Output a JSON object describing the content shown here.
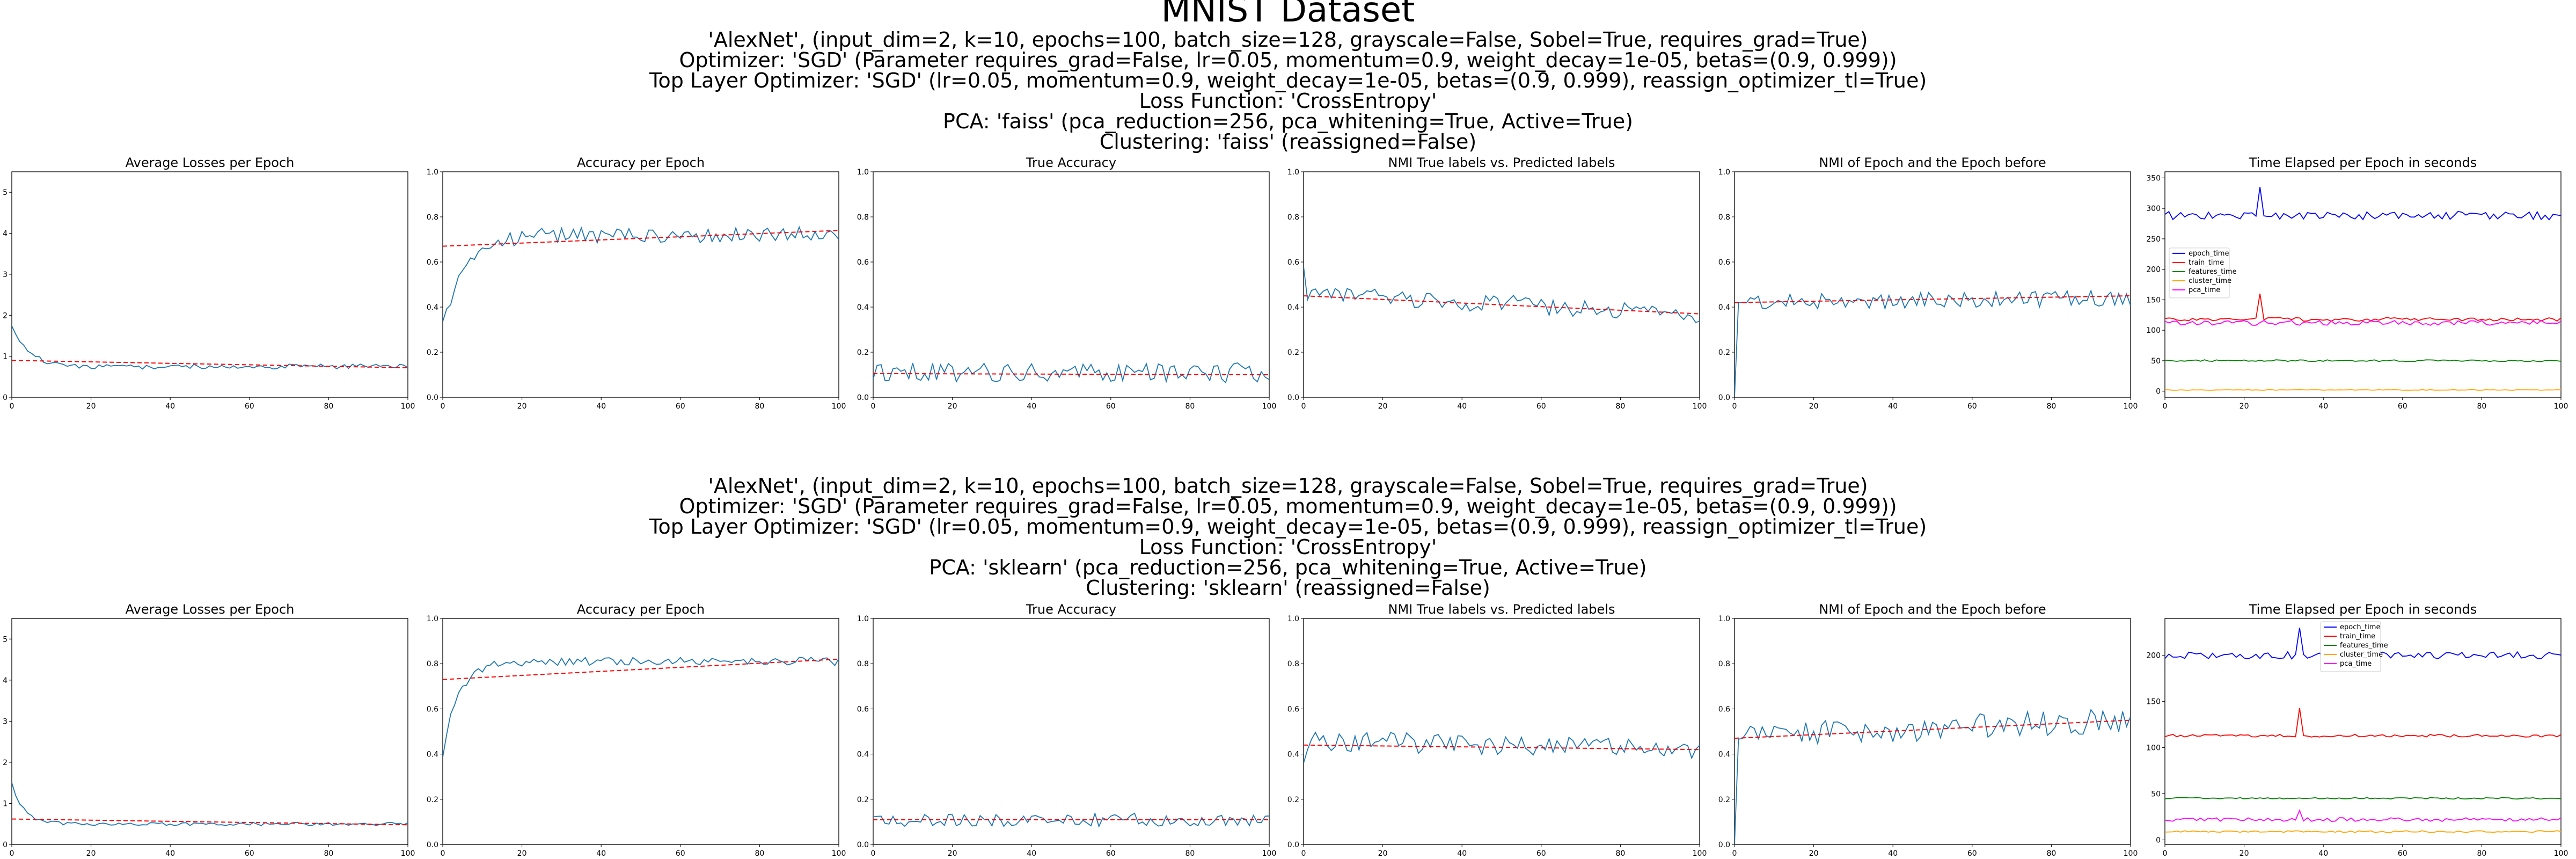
{
  "figure": {
    "title": "MNIST Dataset"
  },
  "colors": {
    "series": "#1f77b4",
    "trend": "#ff0000",
    "epoch_time": "#0000ff",
    "train_time": "#ff0000",
    "features_time": "#008000",
    "cluster_time": "#ffa500",
    "pca_time": "#ff00ff"
  },
  "blocks": [
    {
      "header_lines": [
        "'AlexNet', (input_dim=2, k=10, epochs=100, batch_size=128, grayscale=False, Sobel=True, requires_grad=True)",
        "Optimizer: 'SGD' (Parameter requires_grad=False, lr=0.05, momentum=0.9, weight_decay=1e-05, betas=(0.9, 0.999))",
        "Top Layer Optimizer: 'SGD' (lr=0.05, momentum=0.9, weight_decay=1e-05, betas=(0.9, 0.999), reassign_optimizer_tl=True)",
        "Loss Function: 'CrossEntropy'",
        "PCA: 'faiss' (pca_reduction=256, pca_whitening=True, Active=True)",
        "Clustering: 'faiss' (reassigned=False)"
      ]
    },
    {
      "header_lines": [
        "'AlexNet', (input_dim=2, k=10, epochs=100, batch_size=128, grayscale=False, Sobel=True, requires_grad=True)",
        "Optimizer: 'SGD' (Parameter requires_grad=False, lr=0.05, momentum=0.9, weight_decay=1e-05, betas=(0.9, 0.999))",
        "Top Layer Optimizer: 'SGD' (lr=0.05, momentum=0.9, weight_decay=1e-05, betas=(0.9, 0.999), reassign_optimizer_tl=True)",
        "Loss Function: 'CrossEntropy'",
        "PCA: 'sklearn' (pca_reduction=256, pca_whitening=True, Active=True)",
        "Clustering: 'sklearn' (reassigned=False)"
      ]
    }
  ],
  "chart_data": [
    {
      "type": "line",
      "block": 0,
      "col": 0,
      "title": "Average Losses per Epoch",
      "xlim": [
        0,
        100
      ],
      "ylim": [
        0,
        5.5
      ],
      "xticks": [
        0,
        20,
        40,
        60,
        80,
        100
      ],
      "yticks": [
        0,
        1,
        2,
        3,
        4,
        5
      ],
      "shape": {
        "kind": "decay",
        "start": 1.8,
        "end": 0.75,
        "tau": 4,
        "noise": 0.06
      },
      "trend": [
        0.9,
        0.72
      ]
    },
    {
      "type": "line",
      "block": 0,
      "col": 1,
      "title": "Accuracy per Epoch",
      "xlim": [
        0,
        100
      ],
      "ylim": [
        0,
        1.0
      ],
      "xticks": [
        0,
        20,
        40,
        60,
        80,
        100
      ],
      "yticks": [
        0.0,
        0.2,
        0.4,
        0.6,
        0.8,
        1.0
      ],
      "shape": {
        "kind": "rise",
        "start": 0.33,
        "end": 0.72,
        "tau": 6,
        "noise": 0.035
      },
      "trend": [
        0.67,
        0.74
      ]
    },
    {
      "type": "line",
      "block": 0,
      "col": 2,
      "title": "True Accuracy",
      "xlim": [
        0,
        100
      ],
      "ylim": [
        0,
        1.0
      ],
      "xticks": [
        0,
        20,
        40,
        60,
        80,
        100
      ],
      "yticks": [
        0.0,
        0.2,
        0.4,
        0.6,
        0.8,
        1.0
      ],
      "shape": {
        "kind": "flat",
        "start": 0.11,
        "end": 0.11,
        "tau": 1,
        "noise": 0.045
      },
      "trend": [
        0.105,
        0.1
      ]
    },
    {
      "type": "line",
      "block": 0,
      "col": 3,
      "title": "NMI True labels vs. Predicted labels",
      "xlim": [
        0,
        100
      ],
      "ylim": [
        0,
        1.0
      ],
      "xticks": [
        0,
        20,
        40,
        60,
        80,
        100
      ],
      "yticks": [
        0.0,
        0.2,
        0.4,
        0.6,
        0.8,
        1.0
      ],
      "shape": {
        "kind": "linear",
        "start": 0.46,
        "end": 0.37,
        "tau": 1,
        "noise": 0.04,
        "first": 0.58
      },
      "trend": [
        0.45,
        0.37
      ]
    },
    {
      "type": "line",
      "block": 0,
      "col": 4,
      "title": "NMI of Epoch and the Epoch before",
      "xlim": [
        0,
        100
      ],
      "ylim": [
        0,
        1.0
      ],
      "xticks": [
        0,
        20,
        40,
        60,
        80,
        100
      ],
      "yticks": [
        0.0,
        0.2,
        0.4,
        0.6,
        0.8,
        1.0
      ],
      "shape": {
        "kind": "linear",
        "start": 0.42,
        "end": 0.44,
        "tau": 1,
        "noise": 0.035,
        "first": 0.0
      },
      "trend": [
        0.42,
        0.45
      ]
    },
    {
      "type": "line",
      "block": 0,
      "col": 5,
      "title": "Time Elapsed per Epoch in seconds",
      "xlim": [
        0,
        100
      ],
      "ylim": [
        -10,
        360
      ],
      "xticks": [
        0,
        20,
        40,
        60,
        80,
        100
      ],
      "yticks": [
        0,
        50,
        100,
        150,
        200,
        250,
        300,
        350
      ],
      "legend": {
        "location": "center-left",
        "entries": [
          "epoch_time",
          "train_time",
          "features_time",
          "cluster_time",
          "pca_time"
        ]
      },
      "series": [
        {
          "key": "epoch_time",
          "base": 288,
          "noise": 7,
          "spike_at": 24,
          "spike": 335
        },
        {
          "key": "train_time",
          "base": 118,
          "noise": 3,
          "spike_at": 24,
          "spike": 160
        },
        {
          "key": "features_time",
          "base": 50,
          "noise": 1.5
        },
        {
          "key": "cluster_time",
          "base": 2,
          "noise": 0.5
        },
        {
          "key": "pca_time",
          "base": 112,
          "noise": 4
        }
      ]
    },
    {
      "type": "line",
      "block": 1,
      "col": 0,
      "title": "Average Losses per Epoch",
      "xlim": [
        0,
        100
      ],
      "ylim": [
        0,
        5.5
      ],
      "xticks": [
        0,
        20,
        40,
        60,
        80,
        100
      ],
      "yticks": [
        0,
        1,
        2,
        3,
        4,
        5
      ],
      "shape": {
        "kind": "decay",
        "start": 1.5,
        "end": 0.5,
        "tau": 3,
        "noise": 0.04
      },
      "trend": [
        0.62,
        0.48
      ]
    },
    {
      "type": "line",
      "block": 1,
      "col": 1,
      "title": "Accuracy per Epoch",
      "xlim": [
        0,
        100
      ],
      "ylim": [
        0,
        1.0
      ],
      "xticks": [
        0,
        20,
        40,
        60,
        80,
        100
      ],
      "yticks": [
        0.0,
        0.2,
        0.4,
        0.6,
        0.8,
        1.0
      ],
      "shape": {
        "kind": "rise",
        "start": 0.4,
        "end": 0.81,
        "tau": 4,
        "noise": 0.018
      },
      "trend": [
        0.73,
        0.82
      ]
    },
    {
      "type": "line",
      "block": 1,
      "col": 2,
      "title": "True Accuracy",
      "xlim": [
        0,
        100
      ],
      "ylim": [
        0,
        1.0
      ],
      "xticks": [
        0,
        20,
        40,
        60,
        80,
        100
      ],
      "yticks": [
        0.0,
        0.2,
        0.4,
        0.6,
        0.8,
        1.0
      ],
      "shape": {
        "kind": "flat",
        "start": 0.11,
        "end": 0.11,
        "tau": 1,
        "noise": 0.03
      },
      "trend": [
        0.11,
        0.11
      ]
    },
    {
      "type": "line",
      "block": 1,
      "col": 3,
      "title": "NMI True labels vs. Predicted labels",
      "xlim": [
        0,
        100
      ],
      "ylim": [
        0,
        1.0
      ],
      "xticks": [
        0,
        20,
        40,
        60,
        80,
        100
      ],
      "yticks": [
        0.0,
        0.2,
        0.4,
        0.6,
        0.8,
        1.0
      ],
      "shape": {
        "kind": "linear",
        "start": 0.46,
        "end": 0.42,
        "tau": 1,
        "noise": 0.045,
        "first": 0.36
      },
      "trend": [
        0.44,
        0.42
      ]
    },
    {
      "type": "line",
      "block": 1,
      "col": 4,
      "title": "NMI of Epoch and the Epoch before",
      "xlim": [
        0,
        100
      ],
      "ylim": [
        0,
        1.0
      ],
      "xticks": [
        0,
        20,
        40,
        60,
        80,
        100
      ],
      "yticks": [
        0.0,
        0.2,
        0.4,
        0.6,
        0.8,
        1.0
      ],
      "shape": {
        "kind": "linear",
        "start": 0.48,
        "end": 0.55,
        "tau": 1,
        "noise": 0.055,
        "first": 0.0
      },
      "trend": [
        0.47,
        0.55
      ]
    },
    {
      "type": "line",
      "block": 1,
      "col": 5,
      "title": "Time Elapsed per Epoch in seconds",
      "xlim": [
        0,
        100
      ],
      "ylim": [
        -5,
        240
      ],
      "xticks": [
        0,
        20,
        40,
        60,
        80,
        100
      ],
      "yticks": [
        0,
        50,
        100,
        150,
        200
      ],
      "legend": {
        "location": "upper-center",
        "entries": [
          "epoch_time",
          "train_time",
          "features_time",
          "cluster_time",
          "pca_time"
        ]
      },
      "series": [
        {
          "key": "epoch_time",
          "base": 200,
          "noise": 4,
          "spike_at": 34,
          "spike": 230
        },
        {
          "key": "train_time",
          "base": 113,
          "noise": 1.5,
          "spike_at": 34,
          "spike": 143
        },
        {
          "key": "features_time",
          "base": 45,
          "noise": 0.8
        },
        {
          "key": "cluster_time",
          "base": 9,
          "noise": 1
        },
        {
          "key": "pca_time",
          "base": 22,
          "noise": 2,
          "spike_at": 34,
          "spike": 32
        }
      ]
    }
  ]
}
